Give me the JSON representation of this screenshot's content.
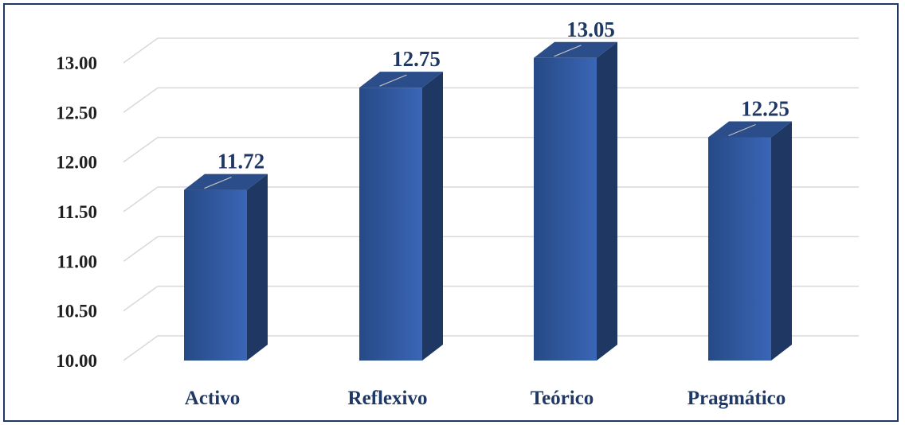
{
  "chart_data": {
    "type": "bar",
    "categories": [
      "Activo",
      "Reflexivo",
      "Teórico",
      "Pragmático"
    ],
    "values": [
      11.72,
      12.75,
      13.05,
      12.25
    ],
    "data_labels": [
      "11.72",
      "12.75",
      "13.05",
      "12.25"
    ],
    "y_ticks": [
      "10.00",
      "10.50",
      "11.00",
      "11.50",
      "12.00",
      "12.50",
      "13.00"
    ],
    "ylim": [
      10.0,
      13.0
    ],
    "grid": true,
    "style": "3d-column",
    "colors": {
      "bar_front_dark": "#264a86",
      "bar_front_light": "#3a66b6",
      "bar_side": "#1e3763",
      "bar_top": "#2b4d8a",
      "gridline": "#d9d9d9",
      "label": "#1f3864",
      "border": "#1f3864"
    }
  }
}
